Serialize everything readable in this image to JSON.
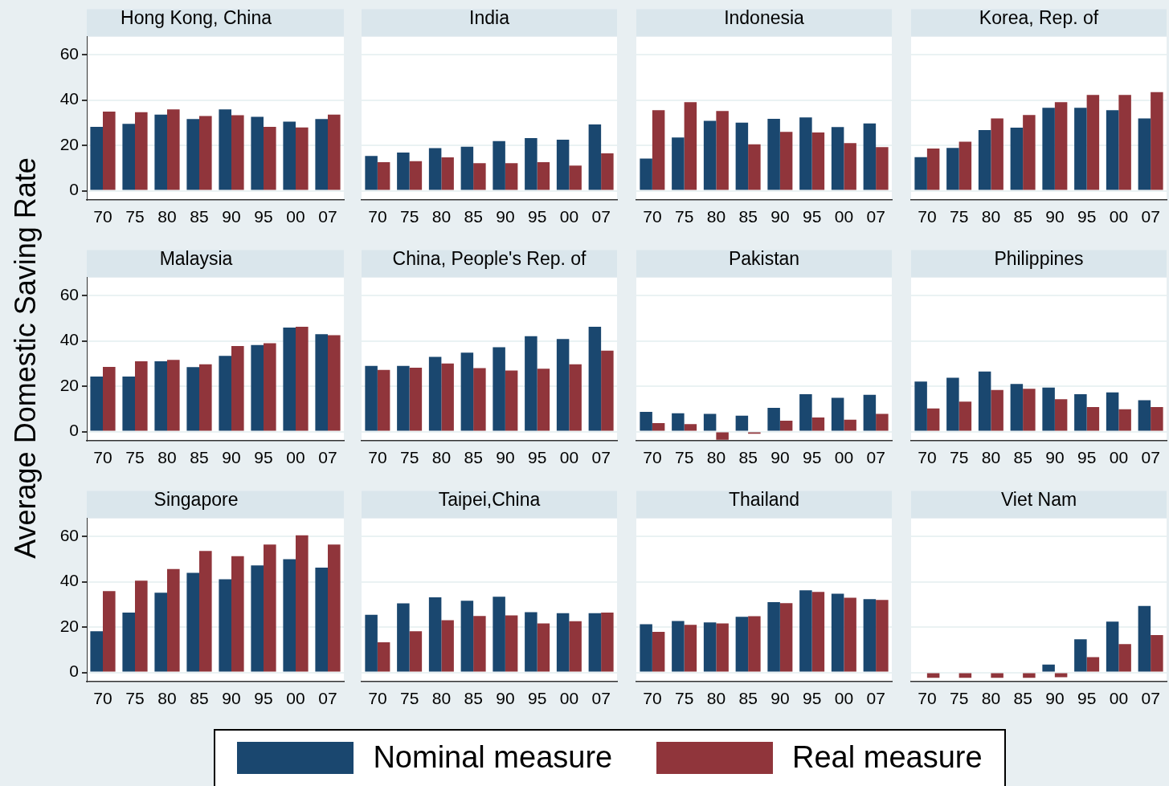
{
  "chart_data": [
    {
      "type": "bar",
      "title": "Hong Kong, China",
      "ylabel": "Average Domestic Saving Rate",
      "legend": "bottom",
      "grid": "y",
      "categories": [
        "70",
        "75",
        "80",
        "85",
        "90",
        "95",
        "00",
        "07"
      ],
      "ylim": [
        -4,
        68
      ],
      "yticks": [
        0,
        20,
        40,
        60
      ],
      "series": [
        {
          "name": "Nominal measure",
          "color": "#1a476f",
          "values": [
            28.2,
            29.5,
            33.6,
            31.6,
            35.9,
            32.6,
            30.5,
            31.6
          ]
        },
        {
          "name": "Real measure",
          "color": "#90353b",
          "values": [
            34.9,
            34.6,
            35.9,
            33,
            33.3,
            28.2,
            27.9,
            33.6
          ]
        }
      ]
    },
    {
      "type": "bar",
      "title": "India",
      "grid": "y",
      "tick_labels": "x",
      "categories": [
        "70",
        "75",
        "80",
        "85",
        "90",
        "95",
        "00",
        "07"
      ],
      "ylim": [
        -4,
        68
      ],
      "yticks": [
        0,
        20,
        40,
        60
      ],
      "series": [
        {
          "color": "#1a476f",
          "values": [
            15.3,
            16.8,
            18.8,
            19.4,
            21.9,
            23.2,
            22.5,
            29.2
          ]
        },
        {
          "color": "#90353b",
          "values": [
            12.6,
            13,
            14.7,
            12.1,
            12.1,
            12.6,
            11.1,
            16.5
          ]
        }
      ]
    },
    {
      "type": "bar",
      "title": "Indonesia",
      "grid": "y",
      "tick_labels": "x",
      "categories": [
        "70",
        "75",
        "80",
        "85",
        "90",
        "95",
        "00",
        "07"
      ],
      "ylim": [
        -4,
        68
      ],
      "yticks": [
        0,
        20,
        40,
        60
      ],
      "series": [
        {
          "color": "#1a476f",
          "values": [
            14.2,
            23.5,
            30.8,
            30,
            31.7,
            32.3,
            28.1,
            29.7
          ]
        },
        {
          "color": "#90353b",
          "values": [
            35.5,
            39.1,
            35.2,
            20.5,
            26,
            25.7,
            21,
            19.2
          ]
        }
      ]
    },
    {
      "type": "bar",
      "title": "Korea, Rep. of",
      "grid": "y",
      "tick_labels": "x",
      "categories": [
        "70",
        "75",
        "80",
        "85",
        "90",
        "95",
        "00",
        "07"
      ],
      "ylim": [
        -4,
        68
      ],
      "yticks": [
        0,
        20,
        40,
        60
      ],
      "series": [
        {
          "color": "#1a476f",
          "values": [
            14.8,
            18.9,
            26.8,
            27.8,
            36.6,
            36.6,
            35.5,
            31.9
          ]
        },
        {
          "color": "#90353b",
          "values": [
            18.6,
            21.6,
            31.9,
            33.4,
            39.1,
            42.3,
            42.3,
            43.5
          ]
        }
      ]
    },
    {
      "type": "bar",
      "title": "Malaysia",
      "grid": "y",
      "categories": [
        "70",
        "75",
        "80",
        "85",
        "90",
        "95",
        "00",
        "07"
      ],
      "ylim": [
        -4,
        68
      ],
      "yticks": [
        0,
        20,
        40,
        60
      ],
      "series": [
        {
          "color": "#1a476f",
          "values": [
            24.3,
            24.3,
            31,
            28.4,
            33.4,
            38.2,
            45.9,
            43
          ]
        },
        {
          "color": "#90353b",
          "values": [
            28.5,
            31,
            31.6,
            29.7,
            37.7,
            39,
            46.2,
            42.5
          ]
        }
      ]
    },
    {
      "type": "bar",
      "title": "China, People's Rep. of",
      "grid": "y",
      "tick_labels": "x",
      "categories": [
        "70",
        "75",
        "80",
        "85",
        "90",
        "95",
        "00",
        "07"
      ],
      "ylim": [
        -4,
        68
      ],
      "yticks": [
        0,
        20,
        40,
        60
      ],
      "series": [
        {
          "color": "#1a476f",
          "values": [
            29,
            29,
            33,
            34.8,
            37.2,
            42.1,
            40.8,
            46.2
          ]
        },
        {
          "color": "#90353b",
          "values": [
            27.2,
            28.2,
            30,
            28,
            26.9,
            27.7,
            29.7,
            35.7
          ]
        }
      ]
    },
    {
      "type": "bar",
      "title": "Pakistan",
      "grid": "y",
      "tick_labels": "x",
      "categories": [
        "70",
        "75",
        "80",
        "85",
        "90",
        "95",
        "00",
        "07"
      ],
      "ylim": [
        -4,
        68
      ],
      "yticks": [
        0,
        20,
        40,
        60
      ],
      "series": [
        {
          "color": "#1a476f",
          "values": [
            8.7,
            8.1,
            7.8,
            7,
            10.5,
            16.5,
            14.9,
            16.2
          ]
        },
        {
          "color": "#90353b",
          "values": [
            3.7,
            3.3,
            -3.6,
            -1,
            4.8,
            6.2,
            5.2,
            7.8
          ]
        }
      ]
    },
    {
      "type": "bar",
      "title": "Philippines",
      "grid": "y",
      "tick_labels": "x",
      "categories": [
        "70",
        "75",
        "80",
        "85",
        "90",
        "95",
        "00",
        "07"
      ],
      "ylim": [
        -4,
        68
      ],
      "yticks": [
        0,
        20,
        40,
        60
      ],
      "series": [
        {
          "color": "#1a476f",
          "values": [
            22.1,
            23.7,
            26.5,
            21,
            19.4,
            16.5,
            17.3,
            13.8
          ]
        },
        {
          "color": "#90353b",
          "values": [
            10.2,
            13.2,
            18.3,
            18.9,
            14.3,
            10.8,
            9.8,
            10.8
          ]
        }
      ]
    },
    {
      "type": "bar",
      "title": "Singapore",
      "grid": "y",
      "categories": [
        "70",
        "75",
        "80",
        "85",
        "90",
        "95",
        "00",
        "07"
      ],
      "ylim": [
        -4,
        68
      ],
      "yticks": [
        0,
        20,
        40,
        60
      ],
      "series": [
        {
          "color": "#1a476f",
          "values": [
            18.2,
            26.4,
            35.2,
            43.9,
            41.1,
            47.2,
            50,
            46.2
          ]
        },
        {
          "color": "#90353b",
          "values": [
            35.9,
            40.5,
            45.6,
            53.6,
            51.3,
            56.4,
            60.5,
            56.4
          ]
        }
      ]
    },
    {
      "type": "bar",
      "title": "Taipei,China",
      "grid": "y",
      "tick_labels": "x",
      "categories": [
        "70",
        "75",
        "80",
        "85",
        "90",
        "95",
        "00",
        "07"
      ],
      "ylim": [
        -4,
        68
      ],
      "yticks": [
        0,
        20,
        40,
        60
      ],
      "series": [
        {
          "color": "#1a476f",
          "values": [
            25.4,
            30.5,
            33.1,
            31.6,
            33.4,
            26.6,
            26.1,
            26.1
          ]
        },
        {
          "color": "#90353b",
          "values": [
            13.3,
            18.2,
            23,
            24.9,
            25.2,
            21.6,
            22.6,
            26.4
          ]
        }
      ]
    },
    {
      "type": "bar",
      "title": "Thailand",
      "grid": "y",
      "tick_labels": "x",
      "categories": [
        "70",
        "75",
        "80",
        "85",
        "90",
        "95",
        "00",
        "07"
      ],
      "ylim": [
        -4,
        68
      ],
      "yticks": [
        0,
        20,
        40,
        60
      ],
      "series": [
        {
          "color": "#1a476f",
          "values": [
            21.3,
            22.7,
            22.1,
            24.5,
            31,
            36.2,
            34.7,
            32.3
          ]
        },
        {
          "color": "#90353b",
          "values": [
            17.9,
            21,
            21.6,
            24.8,
            30.6,
            35.5,
            33,
            32
          ]
        }
      ]
    },
    {
      "type": "bar",
      "title": "Viet Nam",
      "grid": "y",
      "tick_labels": "x",
      "categories": [
        "70",
        "75",
        "80",
        "85",
        "90",
        "95",
        "00",
        "07"
      ],
      "ylim": [
        -4,
        68
      ],
      "yticks": [
        0,
        20,
        40,
        60
      ],
      "series": [
        {
          "color": "#1a476f",
          "values": [
            null,
            null,
            null,
            null,
            3.5,
            14.6,
            22.4,
            29.3
          ]
        },
        {
          "color": "#90353b",
          "values": [
            -2.4,
            -2.4,
            -2.4,
            -2.4,
            -2.1,
            6.7,
            12.5,
            16.5
          ]
        }
      ]
    }
  ]
}
